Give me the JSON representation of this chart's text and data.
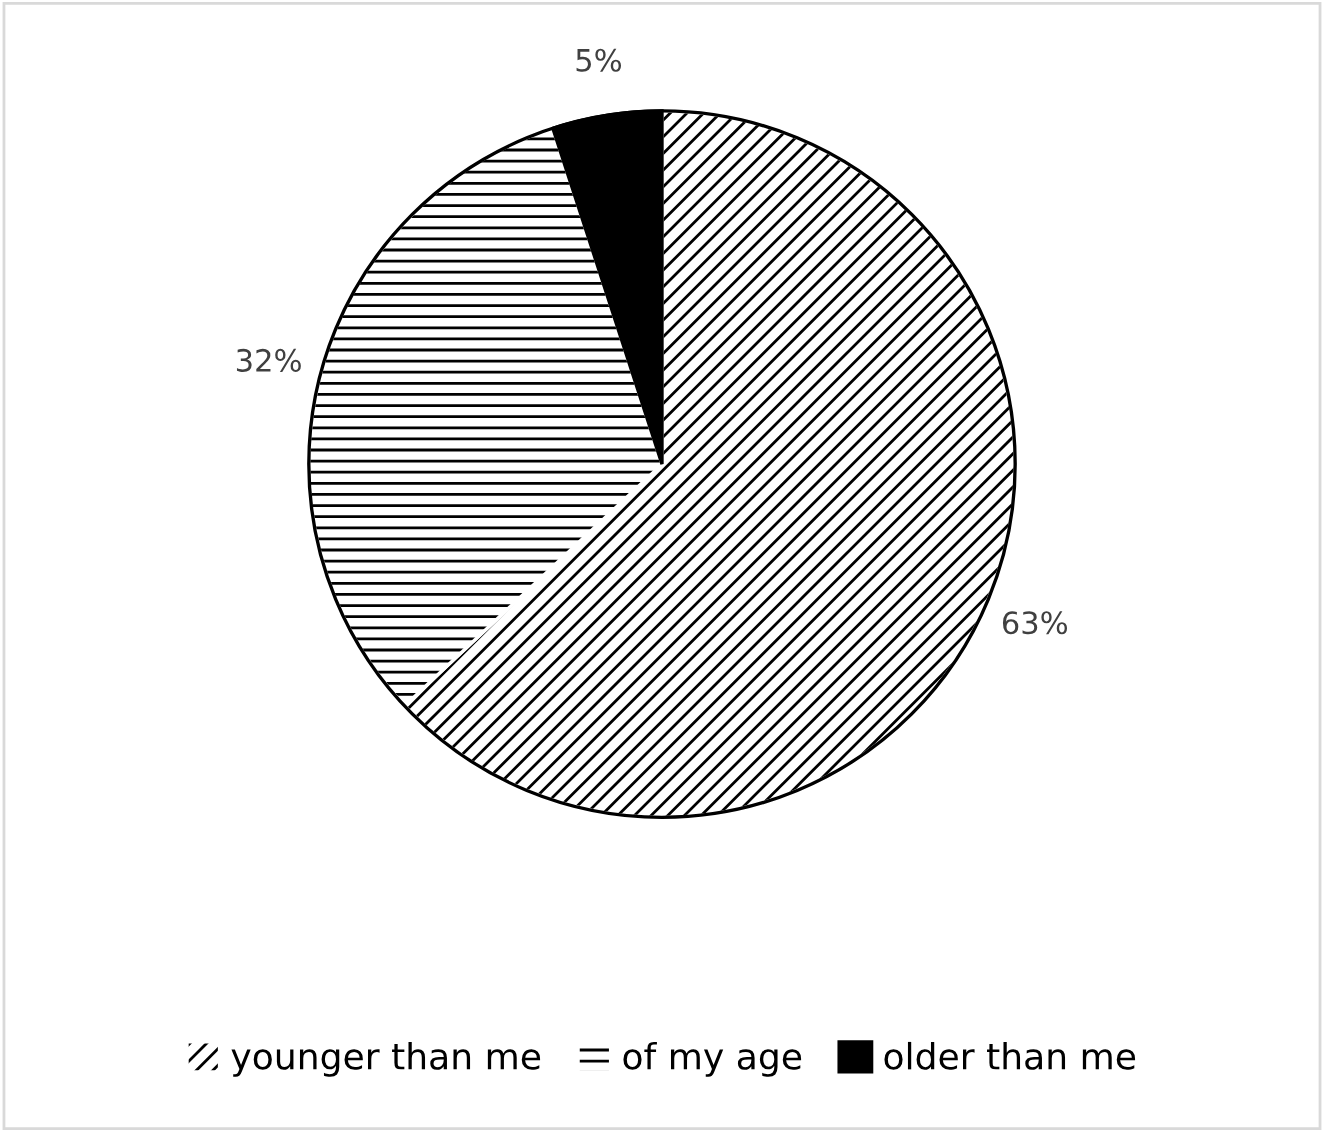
{
  "chart_data": {
    "type": "pie",
    "categories": [
      "younger than me",
      "of my age",
      "older than me"
    ],
    "values": [
      63,
      32,
      5
    ],
    "colors": [
      "#ffffff",
      "#ffffff",
      "#000000"
    ],
    "data_labels": true,
    "value_labels": [
      "63%",
      "32%",
      "5%"
    ],
    "legend": "bottom"
  }
}
